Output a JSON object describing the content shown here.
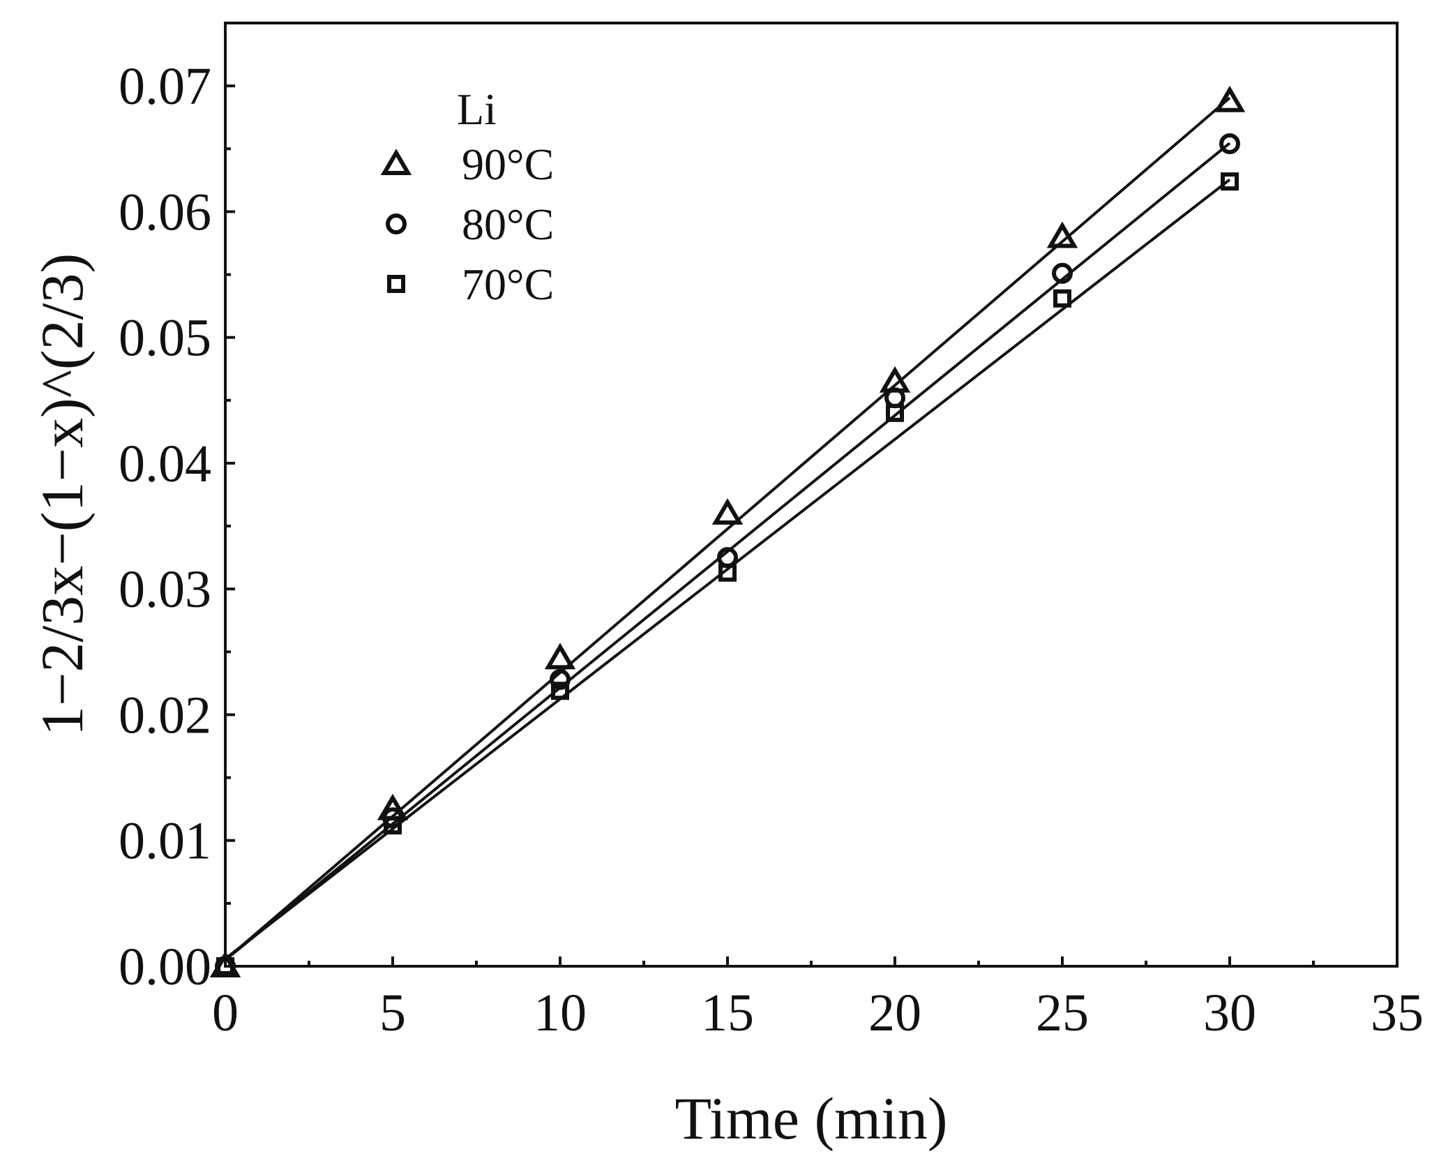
{
  "chart_data": {
    "type": "scatter",
    "title": "",
    "xlabel": "Time (min)",
    "ylabel": "1−2/3x−(1−x)^(2/3)",
    "xlim": [
      0,
      35
    ],
    "ylim": [
      0,
      0.075
    ],
    "x_ticks": [
      0,
      5,
      10,
      15,
      20,
      25,
      30,
      35
    ],
    "x_tick_labels": [
      "0",
      "5",
      "10",
      "15",
      "20",
      "25",
      "30",
      "35"
    ],
    "y_ticks": [
      0,
      0.01,
      0.02,
      0.03,
      0.04,
      0.05,
      0.06,
      0.07
    ],
    "y_tick_labels": [
      "0.00",
      "0.01",
      "0.02",
      "0.03",
      "0.04",
      "0.05",
      "0.06",
      "0.07"
    ],
    "legend_title": "Li",
    "legend_position": "top-left",
    "grid": false,
    "x": [
      0,
      5,
      10,
      15,
      20,
      25,
      30
    ],
    "series": [
      {
        "name": "90°C",
        "marker": "triangle",
        "values": [
          0,
          0.0125,
          0.0245,
          0.036,
          0.0465,
          0.058,
          0.0688
        ],
        "fit": {
          "slope": 0.002285,
          "intercept": 0.0005
        }
      },
      {
        "name": "80°C",
        "marker": "circle",
        "values": [
          0,
          0.0118,
          0.0228,
          0.0325,
          0.0452,
          0.0551,
          0.0654
        ],
        "fit": {
          "slope": 0.002165,
          "intercept": 0.0005
        }
      },
      {
        "name": "70°C",
        "marker": "square",
        "values": [
          0,
          0.0112,
          0.0219,
          0.0313,
          0.044,
          0.0531,
          0.0624
        ],
        "fit": {
          "slope": 0.002065,
          "intercept": 0.0006
        }
      }
    ]
  }
}
